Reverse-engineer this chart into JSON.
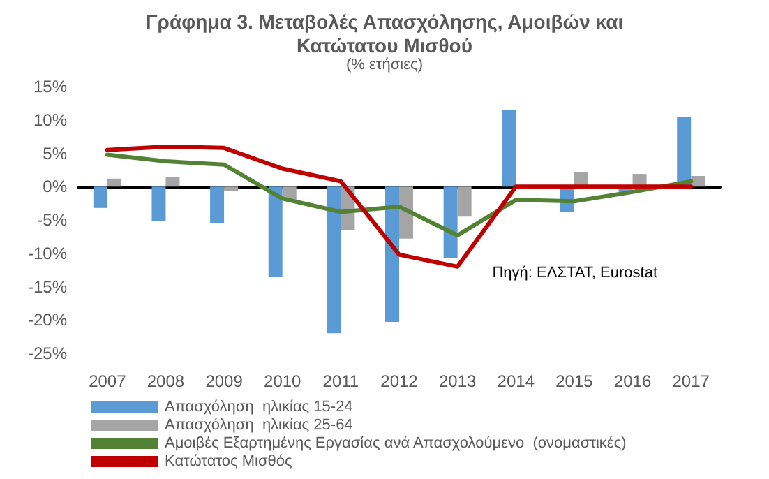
{
  "chart_data": {
    "type": "bar",
    "title": "Γράφημα 3. Μεταβολές Απασχόλησης, Αμοιβών και\nΚατώτατου Μισθού",
    "subtitle": "(% ετήσιες)",
    "categories": [
      "2007",
      "2008",
      "2009",
      "2010",
      "2011",
      "2012",
      "2013",
      "2014",
      "2015",
      "2016",
      "2017"
    ],
    "series": [
      {
        "name": "Απασχόληση  ηλικίας 15-24",
        "color": "#5b9bd5",
        "values": [
          -3.2,
          -5.2,
          -5.5,
          -13.5,
          -22,
          -20.3,
          -10.7,
          11.5,
          -3.8,
          -0.8,
          10.4
        ]
      },
      {
        "name": "Απασχόληση  ηλικίας 25-64",
        "color": "#a5a5a5",
        "values": [
          1.2,
          1.4,
          -0.6,
          -2,
          -6.5,
          -7.8,
          -4.5,
          0,
          2.2,
          1.9,
          1.6
        ]
      },
      {
        "name": "Αμοιβές Εξαρτημένης Εργασίας ανά Απασχολούμενο  (ονομαστικές)",
        "type": "line",
        "color": "#548235",
        "values": [
          4.8,
          3.8,
          3.3,
          -1.8,
          -3.8,
          -3,
          -7.3,
          -2,
          -2.2,
          -0.8,
          0.8
        ]
      },
      {
        "name": "Κατώτατος Μισθός",
        "type": "line",
        "color": "#c00000",
        "values": [
          5.5,
          6,
          5.8,
          2.7,
          0.8,
          -10.2,
          -12,
          0,
          0,
          0,
          0
        ]
      }
    ],
    "ylim": [
      -25,
      15
    ],
    "yticks": [
      {
        "value": -25,
        "label": "-25%"
      },
      {
        "value": -20,
        "label": "-20%"
      },
      {
        "value": -15,
        "label": "-15%"
      },
      {
        "value": -10,
        "label": "-10%"
      },
      {
        "value": -5,
        "label": "-5%"
      },
      {
        "value": 0,
        "label": "0%"
      },
      {
        "value": 5,
        "label": "5%"
      },
      {
        "value": 10,
        "label": "10%"
      },
      {
        "value": 15,
        "label": "15%"
      }
    ],
    "legend": "bottom",
    "marker": "none",
    "annotations": [
      {
        "text": "Πηγή: ΕΛΣΤΑΤ, Eurostat"
      }
    ]
  }
}
